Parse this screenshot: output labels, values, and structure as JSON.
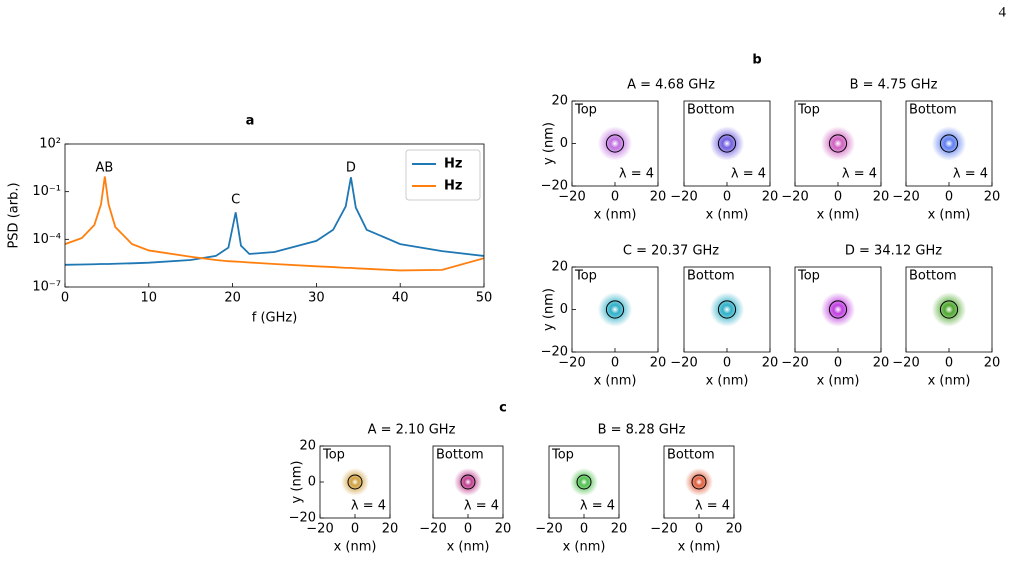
{
  "page_number": "4",
  "chart_data": [
    {
      "type": "line",
      "panel": "a",
      "xlabel": "f (GHz)",
      "ylabel": "PSD (arb.)",
      "log_y": true,
      "legend": "upper right",
      "xlim": [
        0,
        50
      ],
      "ylim": [
        1e-07,
        100
      ],
      "xticks": [
        0,
        10,
        20,
        30,
        40,
        50
      ],
      "yticks": [
        {
          "value": 100,
          "label": "10²"
        },
        {
          "value": 0.1,
          "label": "10⁻¹"
        },
        {
          "value": 0.0001,
          "label": "10⁻⁴"
        },
        {
          "value": 1e-07,
          "label": "10⁻⁷"
        }
      ],
      "x": [
        0,
        2,
        3.5,
        4.3,
        4.75,
        5.2,
        6,
        8,
        10,
        15,
        18,
        19.5,
        20.37,
        21,
        22,
        25,
        30,
        32,
        33.5,
        34.12,
        34.7,
        36,
        40,
        45,
        50
      ],
      "series": [
        {
          "name": "Hz",
          "color": "#1f77b4",
          "values": [
            2.5e-06,
            2.6e-06,
            2.7e-06,
            2.8e-06,
            2.8e-06,
            2.8e-06,
            2.9e-06,
            3.1e-06,
            3.4e-06,
            5e-06,
            9e-06,
            3e-05,
            0.005,
            4e-05,
            1.2e-05,
            1.6e-05,
            8e-05,
            0.0004,
            0.012,
            0.8,
            0.01,
            0.0004,
            5e-05,
            1.8e-05,
            9e-06
          ]
        },
        {
          "name": "Hz",
          "color": "#ff7f0e",
          "values": [
            5e-05,
            0.00012,
            0.0008,
            0.016,
            0.9,
            0.016,
            0.0006,
            5e-05,
            2e-05,
            8e-06,
            5e-06,
            4.2e-06,
            4e-06,
            3.8e-06,
            3.5e-06,
            2.8e-06,
            2e-06,
            1.8e-06,
            1.6e-06,
            1.6e-06,
            1.5e-06,
            1.4e-06,
            1.1e-06,
            1.2e-06,
            6.5e-06
          ]
        }
      ],
      "annotations": [
        {
          "text": "AB",
          "x": 4.7,
          "y": 3
        },
        {
          "text": "C",
          "x": 20.37,
          "y": 0.03
        },
        {
          "text": "D",
          "x": 34.12,
          "y": 3
        }
      ]
    },
    {
      "type": "image",
      "panel": "b",
      "title": "A = 4.68 GHz",
      "xlabel": "x (nm)",
      "ylabel": "y (nm)",
      "xlim": [
        -20,
        20
      ],
      "ylim": [
        -20,
        20
      ],
      "xticks": [
        {
          "value": -20,
          "label": "−20"
        },
        0,
        20
      ],
      "yticks": [
        {
          "value": -20,
          "label": "−20"
        },
        0,
        20
      ],
      "plots": [
        {
          "label": "Top",
          "note": "λ = 4"
        },
        {
          "label": "Bottom",
          "note": "λ = 4"
        }
      ]
    },
    {
      "type": "image",
      "title": "B = 4.75 GHz",
      "xlabel": "x (nm)",
      "xlim": [
        -20,
        20
      ],
      "ylim": [
        -20,
        20
      ],
      "xticks": [
        {
          "value": -20,
          "label": "−20"
        },
        0,
        20
      ],
      "plots": [
        {
          "label": "Top",
          "note": "λ = 4"
        },
        {
          "label": "Bottom",
          "note": "λ = 4"
        }
      ]
    },
    {
      "type": "image",
      "title": "C = 20.37 GHz",
      "xlabel": "x (nm)",
      "ylabel": "y (nm)",
      "xlim": [
        -20,
        20
      ],
      "ylim": [
        -20,
        20
      ],
      "xticks": [
        {
          "value": -20,
          "label": "−20"
        },
        0,
        20
      ],
      "yticks": [
        {
          "value": -20,
          "label": "−20"
        },
        0,
        20
      ],
      "plots": [
        {
          "label": "Top"
        },
        {
          "label": "Bottom"
        }
      ]
    },
    {
      "type": "image",
      "title": "D = 34.12 GHz",
      "xlabel": "x (nm)",
      "xlim": [
        -20,
        20
      ],
      "ylim": [
        -20,
        20
      ],
      "xticks": [
        {
          "value": -20,
          "label": "−20"
        },
        0,
        20
      ],
      "plots": [
        {
          "label": "Top"
        },
        {
          "label": "Bottom"
        }
      ]
    },
    {
      "type": "image",
      "panel": "c",
      "title": "A = 2.10 GHz",
      "xlabel": "x (nm)",
      "ylabel": "y (nm)",
      "xlim": [
        -20,
        20
      ],
      "ylim": [
        -20,
        20
      ],
      "xticks": [
        {
          "value": -20,
          "label": "−20"
        },
        0,
        20
      ],
      "yticks": [
        {
          "value": -20,
          "label": "−20"
        },
        0,
        20
      ],
      "plots": [
        {
          "label": "Top",
          "note": "λ = 4"
        },
        {
          "label": "Bottom",
          "note": "λ = 4"
        }
      ]
    },
    {
      "type": "image",
      "title": "B = 8.28 GHz",
      "xlabel": "x (nm)",
      "xlim": [
        -20,
        20
      ],
      "ylim": [
        -20,
        20
      ],
      "xticks": [
        {
          "value": -20,
          "label": "−20"
        },
        0,
        20
      ],
      "plots": [
        {
          "label": "Top",
          "note": "λ = 4"
        },
        {
          "label": "Bottom",
          "note": "λ = 4"
        }
      ]
    }
  ]
}
